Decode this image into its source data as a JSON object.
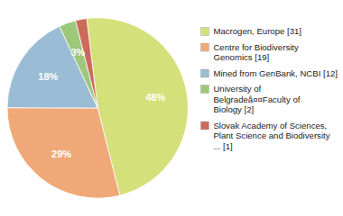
{
  "chart_data": {
    "type": "pie",
    "categories": [
      "Macrogen, Europe [31]",
      "Centre for Biodiversity\nGenomics [19]",
      "Mined from GenBank, NCBI [12]",
      "University of\nBelgradeå¤¤Faculty of\nBiology [2]",
      "Slovak Academy of Sciences,\nPlant Science and Biodiversity\n... [1]"
    ],
    "values": [
      48,
      29,
      18,
      3,
      2
    ],
    "value_labels": [
      "48%",
      "29%",
      "18%",
      "3%",
      null
    ],
    "colors": [
      "#d4e07a",
      "#f0a878",
      "#9abcd4",
      "#9dc87a",
      "#cc6a5a"
    ],
    "data_labels": true,
    "legend": "right"
  }
}
